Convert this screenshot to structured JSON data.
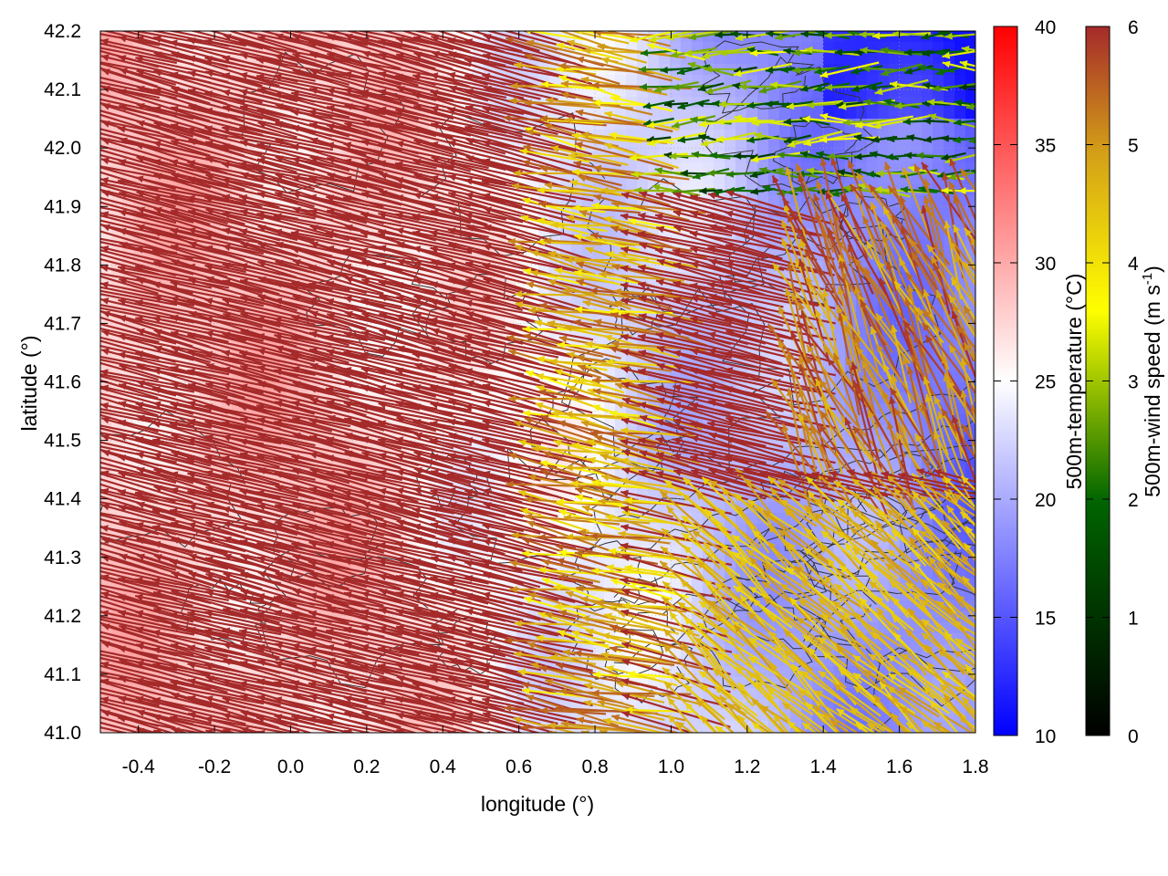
{
  "chart_data": {
    "type": "heatmap",
    "subtype": "vector-field-over-temperature-field-with-contours",
    "title": "",
    "xlabel": "longitude (°)",
    "ylabel": "latitude (°)",
    "xlim": [
      -0.5,
      1.8
    ],
    "ylim": [
      41.0,
      42.2
    ],
    "x_ticks": [
      "-0.4",
      "-0.2",
      "0.0",
      "0.2",
      "0.4",
      "0.6",
      "0.8",
      "1.0",
      "1.2",
      "1.4",
      "1.6",
      "1.8"
    ],
    "y_ticks": [
      "41.0",
      "41.1",
      "41.2",
      "41.3",
      "41.4",
      "41.5",
      "41.6",
      "41.7",
      "41.8",
      "41.9",
      "42.0",
      "42.1",
      "42.2"
    ],
    "grid": true,
    "temperature_colorbar": {
      "label": "500m-temperature (°C)",
      "range": [
        10,
        40
      ],
      "ticks": [
        "10",
        "15",
        "20",
        "25",
        "30",
        "35",
        "40"
      ],
      "colors": [
        "#0000ff",
        "#ffffff",
        "#ff0000"
      ]
    },
    "wind_colorbar": {
      "label_main": "500m-wind speed (m s",
      "label_sup": "-1",
      "label_end": ")",
      "range": [
        0,
        6
      ],
      "ticks": [
        "0",
        "1",
        "2",
        "3",
        "4",
        "5",
        "6"
      ],
      "colors": [
        "#000000",
        "#006400",
        "#ffff00",
        "#d4a017",
        "#a52a2a"
      ]
    },
    "wind_regions": [
      {
        "region": "west and central (lon < 0.7)",
        "speed_ms": 6,
        "direction": "from ESE toward WNW"
      },
      {
        "region": "northeast (lon > 1.0, lat > 41.9)",
        "speed_ms": 1.5,
        "direction": "westward"
      },
      {
        "region": "southeast (lon > 1.1, lat < 41.4)",
        "speed_ms": 4,
        "direction": "northwestward"
      }
    ],
    "temperature_regions": [
      {
        "region": "west (lon < 0.4)",
        "temperature_c": 28
      },
      {
        "region": "central band",
        "temperature_c": 25
      },
      {
        "region": "east (lon > 1.0)",
        "temperature_c": 20
      },
      {
        "region": "northeast corner",
        "temperature_c": 13
      }
    ]
  }
}
